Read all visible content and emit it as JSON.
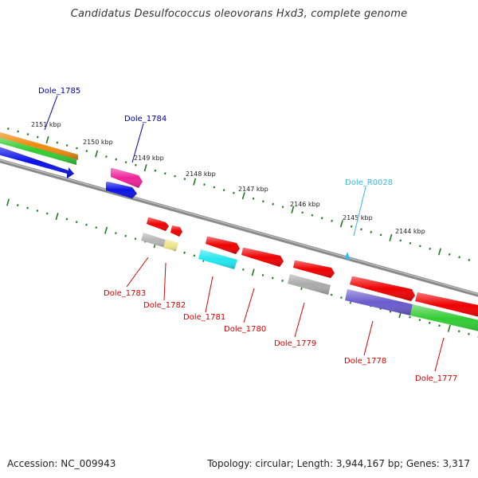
{
  "title": "Candidatus Desulfococcus oleovorans Hxd3, complete genome",
  "footer": {
    "accession": "Accession: NC_009943",
    "topology": "Topology: circular; Length: 3,944,167 bp; Genes: 3,317"
  },
  "colors": {
    "backbone": "#808080",
    "tick": "#1f7a1f",
    "label_blue": "#0000aa",
    "label_cyan": "#33bbdd",
    "label_red": "#dd0000"
  },
  "scale_ticks": [
    "2151 kbp",
    "2150 kbp",
    "2149 kbp",
    "2148 kbp",
    "2147 kbp",
    "2146 kbp",
    "2145 kbp",
    "2144 kbp"
  ],
  "gene_labels": {
    "Dole_1785": "Dole_1785",
    "Dole_1784": "Dole_1784",
    "Dole_R0028": "Dole_R0028",
    "Dole_1783": "Dole_1783",
    "Dole_1782": "Dole_1782",
    "Dole_1781": "Dole_1781",
    "Dole_1780": "Dole_1780",
    "Dole_1779": "Dole_1779",
    "Dole_1778": "Dole_1778",
    "Dole_1777": "Dole_1777"
  }
}
